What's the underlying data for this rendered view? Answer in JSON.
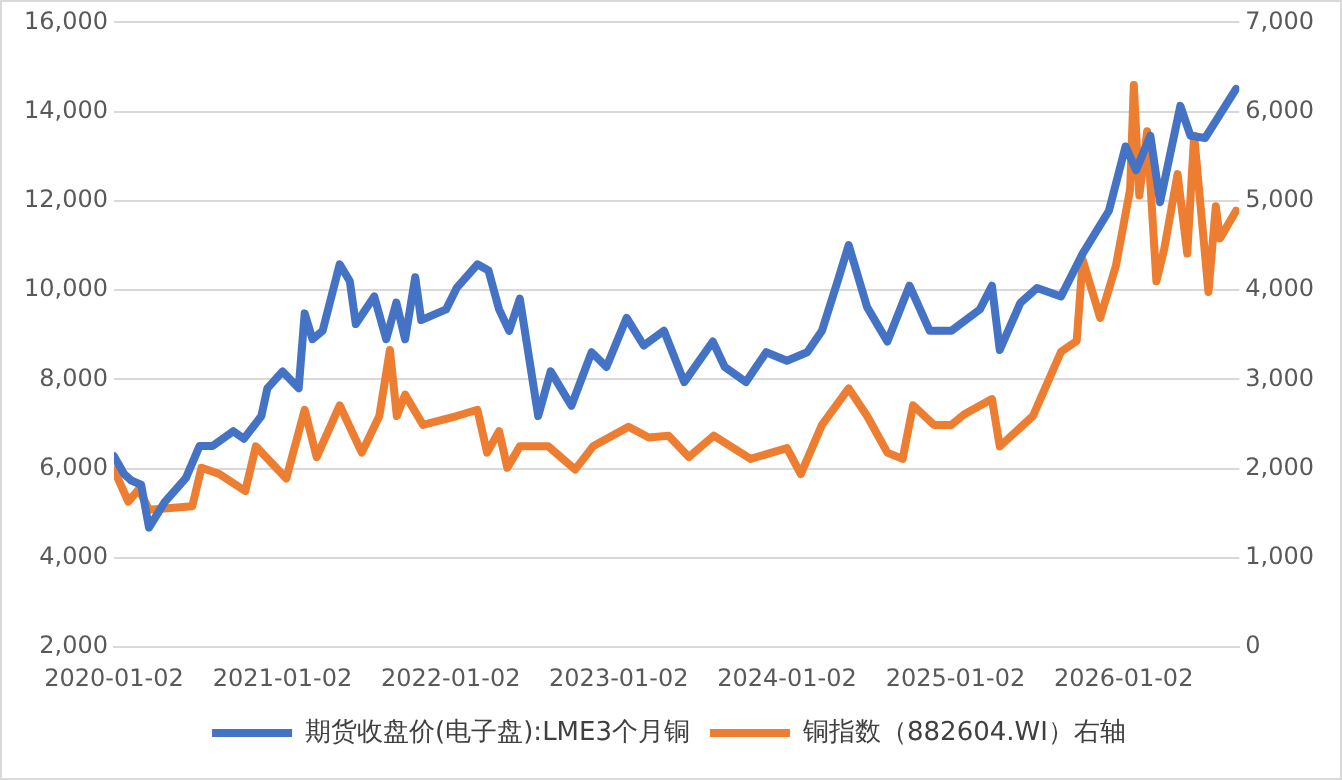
{
  "chart_data": {
    "type": "line",
    "legend": "bottom",
    "grid": "y",
    "xlim": [
      "2020-01-02",
      "2026-09-10"
    ],
    "xticks": [
      "2020-01-02",
      "2021-01-02",
      "2022-01-02",
      "2023-01-02",
      "2024-01-02",
      "2025-01-02",
      "2026-01-02"
    ],
    "ylim": [
      2000,
      16000
    ],
    "yticks": [
      {
        "value": 2000,
        "label": "2,000"
      },
      {
        "value": 4000,
        "label": "4,000"
      },
      {
        "value": 6000,
        "label": "6,000"
      },
      {
        "value": 8000,
        "label": "8,000"
      },
      {
        "value": 10000,
        "label": "10,000"
      },
      {
        "value": 12000,
        "label": "12,000"
      },
      {
        "value": 14000,
        "label": "14,000"
      },
      {
        "value": 16000,
        "label": "16,000"
      }
    ],
    "y2lim": [
      0,
      7000
    ],
    "y2ticks": [
      0,
      {
        "value": 1000,
        "label": "1,000"
      },
      {
        "value": 2000,
        "label": "2,000"
      },
      {
        "value": 3000,
        "label": "3,000"
      },
      {
        "value": 4000,
        "label": "4,000"
      },
      {
        "value": 5000,
        "label": "5,000"
      },
      {
        "value": 6000,
        "label": "6,000"
      },
      {
        "value": 7000,
        "label": "7,000"
      }
    ],
    "series": [
      {
        "name": "期货收盘价(电子盘):LME3个月铜",
        "color": "#4472c4",
        "x": [
          "2020-01-02",
          "2020-01-24",
          "2020-02-08",
          "2020-03-01",
          "2020-03-18",
          "2020-04-21",
          "2020-06-06",
          "2020-07-06",
          "2020-08-03",
          "2020-09-17",
          "2020-10-10",
          "2020-11-17",
          "2020-11-30",
          "2021-01-02",
          "2021-02-06",
          "2021-02-19",
          "2021-03-08",
          "2021-03-30",
          "2021-05-06",
          "2021-05-28",
          "2021-06-10",
          "2021-07-20",
          "2021-08-15",
          "2021-09-06",
          "2021-09-25",
          "2021-10-17",
          "2021-10-30",
          "2021-12-23",
          "2022-01-15",
          "2022-03-01",
          "2022-03-25",
          "2022-04-17",
          "2022-05-09",
          "2022-06-01",
          "2022-07-11",
          "2022-08-07",
          "2022-09-21",
          "2022-11-04",
          "2022-12-06",
          "2023-01-19",
          "2023-02-25",
          "2023-04-10",
          "2023-05-24",
          "2023-07-25",
          "2023-08-20",
          "2023-10-05",
          "2023-11-18",
          "2024-01-02",
          "2024-02-15",
          "2024-03-18",
          "2024-04-21",
          "2024-05-15",
          "2024-06-24",
          "2024-08-07",
          "2024-09-24",
          "2024-11-07",
          "2024-12-24",
          "2025-02-24",
          "2025-03-22",
          "2025-04-08",
          "2025-05-23",
          "2025-06-28",
          "2025-08-19",
          "2025-10-05",
          "2025-12-01",
          "2026-01-06",
          "2026-01-29",
          "2026-03-01",
          "2026-03-22",
          "2026-05-05",
          "2026-05-27",
          "2026-06-28",
          "2026-09-03"
        ],
        "values": [
          6280,
          5880,
          5740,
          5640,
          4680,
          5250,
          5790,
          6510,
          6510,
          6840,
          6670,
          7180,
          7800,
          8180,
          7800,
          9480,
          8900,
          9090,
          10580,
          10200,
          9240,
          9860,
          8900,
          9720,
          8900,
          10290,
          9330,
          9570,
          10050,
          10580,
          10440,
          9570,
          9090,
          9810,
          7180,
          8180,
          7410,
          8610,
          8280,
          9380,
          8760,
          9090,
          7940,
          8850,
          8280,
          7940,
          8610,
          8420,
          8610,
          9090,
          10200,
          11010,
          9620,
          8850,
          10100,
          9090,
          9090,
          9570,
          10100,
          8660,
          9720,
          10050,
          9860,
          10820,
          11780,
          13220,
          12690,
          13460,
          11970,
          14130,
          13460,
          13410,
          14510
        ]
      },
      {
        "name": "铜指数（882604.WI）右轴",
        "color": "#ed7d31",
        "axis": "y2",
        "x": [
          "2020-01-02",
          "2020-02-02",
          "2020-02-25",
          "2020-03-18",
          "2020-06-20",
          "2020-07-10",
          "2020-08-18",
          "2020-10-13",
          "2020-11-05",
          "2021-01-10",
          "2021-02-19",
          "2021-03-17",
          "2021-05-06",
          "2021-06-23",
          "2021-07-31",
          "2021-08-23",
          "2021-09-07",
          "2021-09-25",
          "2021-11-03",
          "2022-01-15",
          "2022-03-01",
          "2022-03-22",
          "2022-04-17",
          "2022-05-05",
          "2022-06-01",
          "2022-08-02",
          "2022-09-29",
          "2022-11-07",
          "2023-01-23",
          "2023-03-08",
          "2023-04-20",
          "2023-06-03",
          "2023-07-27",
          "2023-10-15",
          "2024-01-02",
          "2024-02-01",
          "2024-03-18",
          "2024-05-15",
          "2024-06-24",
          "2024-08-07",
          "2024-09-09",
          "2024-10-02",
          "2024-11-16",
          "2024-12-24",
          "2025-01-21",
          "2025-03-22",
          "2025-04-08",
          "2025-06-19",
          "2025-07-11",
          "2025-08-19",
          "2025-09-22",
          "2025-10-05",
          "2025-11-12",
          "2025-12-16",
          "2026-01-16",
          "2026-01-24",
          "2026-02-05",
          "2026-02-22",
          "2026-03-14",
          "2026-03-31",
          "2026-04-29",
          "2026-05-20",
          "2026-06-04",
          "2026-07-05",
          "2026-07-21",
          "2026-07-30",
          "2026-09-03"
        ],
        "values": [
          1990,
          1630,
          1770,
          1540,
          1580,
          2010,
          1940,
          1750,
          2250,
          1890,
          2660,
          2130,
          2710,
          2180,
          2590,
          3330,
          2590,
          2830,
          2490,
          2590,
          2660,
          2180,
          2420,
          2010,
          2250,
          2250,
          1990,
          2250,
          2470,
          2350,
          2370,
          2130,
          2370,
          2110,
          2230,
          1940,
          2490,
          2900,
          2590,
          2180,
          2110,
          2710,
          2490,
          2490,
          2610,
          2780,
          2250,
          2590,
          2850,
          3310,
          3430,
          4340,
          3690,
          4270,
          5130,
          6300,
          5060,
          5780,
          4100,
          4460,
          5300,
          4410,
          5730,
          3980,
          4940,
          4580,
          4890
        ]
      }
    ]
  }
}
